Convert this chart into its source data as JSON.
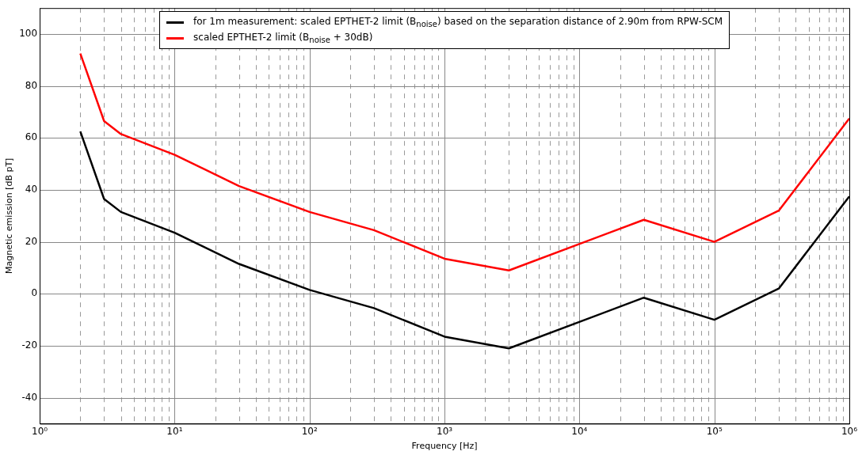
{
  "chart_data": {
    "type": "line",
    "xlabel": "Frequency [Hz]",
    "ylabel": "Magnetic emission [dB pT]",
    "log": "x",
    "grid": true,
    "legend": "top",
    "marker": "none",
    "line_style": "solid",
    "xlim": [
      1,
      1000000
    ],
    "ylim": [
      -50,
      110
    ],
    "xticks": [
      {
        "value": 1,
        "label": "10⁰"
      },
      {
        "value": 2,
        "label": null
      },
      {
        "value": 3,
        "label": null
      },
      {
        "value": 4,
        "label": null
      },
      {
        "value": 5,
        "label": null
      },
      {
        "value": 6,
        "label": null
      },
      {
        "value": 7,
        "label": null
      },
      {
        "value": 8,
        "label": null
      },
      {
        "value": 9,
        "label": null
      },
      {
        "value": 10,
        "label": "10¹"
      },
      {
        "value": 20,
        "label": null
      },
      {
        "value": 30,
        "label": null
      },
      {
        "value": 40,
        "label": null
      },
      {
        "value": 50,
        "label": null
      },
      {
        "value": 60,
        "label": null
      },
      {
        "value": 70,
        "label": null
      },
      {
        "value": 80,
        "label": null
      },
      {
        "value": 90,
        "label": null
      },
      {
        "value": 100,
        "label": "10²"
      },
      {
        "value": 200,
        "label": null
      },
      {
        "value": 300,
        "label": null
      },
      {
        "value": 400,
        "label": null
      },
      {
        "value": 500,
        "label": null
      },
      {
        "value": 600,
        "label": null
      },
      {
        "value": 700,
        "label": null
      },
      {
        "value": 800,
        "label": null
      },
      {
        "value": 900,
        "label": null
      },
      {
        "value": 1000,
        "label": "10³"
      },
      {
        "value": 2000,
        "label": null
      },
      {
        "value": 3000,
        "label": null
      },
      {
        "value": 4000,
        "label": null
      },
      {
        "value": 5000,
        "label": null
      },
      {
        "value": 6000,
        "label": null
      },
      {
        "value": 7000,
        "label": null
      },
      {
        "value": 8000,
        "label": null
      },
      {
        "value": 9000,
        "label": null
      },
      {
        "value": 10000,
        "label": "10⁴"
      },
      {
        "value": 20000,
        "label": null
      },
      {
        "value": 30000,
        "label": null
      },
      {
        "value": 40000,
        "label": null
      },
      {
        "value": 50000,
        "label": null
      },
      {
        "value": 60000,
        "label": null
      },
      {
        "value": 70000,
        "label": null
      },
      {
        "value": 80000,
        "label": null
      },
      {
        "value": 90000,
        "label": null
      },
      {
        "value": 100000,
        "label": "10⁵"
      },
      {
        "value": 200000,
        "label": null
      },
      {
        "value": 300000,
        "label": null
      },
      {
        "value": 400000,
        "label": null
      },
      {
        "value": 500000,
        "label": null
      },
      {
        "value": 600000,
        "label": null
      },
      {
        "value": 700000,
        "label": null
      },
      {
        "value": 800000,
        "label": null
      },
      {
        "value": 900000,
        "label": null
      },
      {
        "value": 1000000,
        "label": "10⁶"
      }
    ],
    "yticks": [
      -40,
      -20,
      0,
      20,
      40,
      60,
      80,
      100
    ],
    "x": [
      2,
      3,
      4,
      10,
      30,
      100,
      300,
      1000,
      3000,
      30000,
      100000,
      300000,
      1000000
    ],
    "series": [
      {
        "name": "for 1m measurement: scaled EPTHET-2 limit (B$_{noise}$) based on the separation distance of 2.90m from RPW-SCM",
        "color": "#000000",
        "values": [
          62.5,
          36.5,
          31.5,
          23.5,
          11.5,
          1.5,
          -5.5,
          -16.5,
          -21,
          -1.5,
          -10,
          2,
          37.5
        ]
      },
      {
        "name": "scaled EPTHET-2 limit (B$_{noise}$ + 30dB)",
        "color": "#ff0000",
        "values": [
          92.5,
          66.5,
          61.5,
          53.5,
          41.5,
          31.5,
          24.5,
          13.5,
          9,
          28.5,
          20,
          32,
          67.5
        ]
      }
    ]
  }
}
